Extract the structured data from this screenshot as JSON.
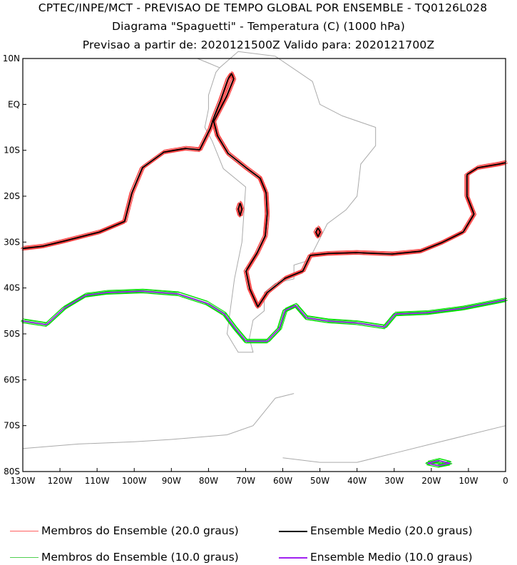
{
  "header": {
    "title1": "CPTEC/INPE/MCT - PREVISAO DE TEMPO GLOBAL POR ENSEMBLE - TQ0126L028",
    "title2": "Diagrama \"Spaguetti\" - Temperatura (C) (1000 hPa)",
    "title3": "Previsao a partir de: 2020121500Z  Valido para: 2020121700Z"
  },
  "chart_data": {
    "type": "line",
    "projection": "lat-lon",
    "xlim": [
      -130,
      0
    ],
    "ylim": [
      -80,
      10
    ],
    "x_ticks": [
      {
        "v": -130,
        "label": "130W"
      },
      {
        "v": -120,
        "label": "120W"
      },
      {
        "v": -110,
        "label": "110W"
      },
      {
        "v": -100,
        "label": "100W"
      },
      {
        "v": -90,
        "label": "90W"
      },
      {
        "v": -80,
        "label": "80W"
      },
      {
        "v": -70,
        "label": "70W"
      },
      {
        "v": -60,
        "label": "60W"
      },
      {
        "v": -50,
        "label": "50W"
      },
      {
        "v": -40,
        "label": "40W"
      },
      {
        "v": -30,
        "label": "30W"
      },
      {
        "v": -20,
        "label": "20W"
      },
      {
        "v": -10,
        "label": "10W"
      },
      {
        "v": 0,
        "label": "0"
      }
    ],
    "y_ticks": [
      {
        "v": 10,
        "label": "10N"
      },
      {
        "v": 0,
        "label": "EQ"
      },
      {
        "v": -10,
        "label": "10S"
      },
      {
        "v": -20,
        "label": "20S"
      },
      {
        "v": -30,
        "label": "30S"
      },
      {
        "v": -40,
        "label": "40S"
      },
      {
        "v": -50,
        "label": "50S"
      },
      {
        "v": -60,
        "label": "60S"
      },
      {
        "v": -70,
        "label": "70S"
      },
      {
        "v": -80,
        "label": "80S"
      }
    ],
    "series": [
      {
        "name": "Ensemble Medio (20.0 graus)",
        "color": "#000000",
        "member_color": "#ff4040",
        "lines": [
          [
            [
              -130,
              -31.4
            ],
            [
              -124.6,
              -30.9
            ],
            [
              -118.9,
              -29.8
            ],
            [
              -109.3,
              -27.8
            ],
            [
              -102.6,
              -25.5
            ],
            [
              -100.6,
              -19.2
            ],
            [
              -97.8,
              -13.8
            ],
            [
              -92,
              -10.4
            ],
            [
              -86.2,
              -9.6
            ],
            [
              -82.4,
              -9.9
            ],
            [
              -79.5,
              -5.2
            ],
            [
              -78.6,
              -2.9
            ],
            [
              -76.7,
              1
            ],
            [
              -74.7,
              5.6
            ],
            [
              -73.8,
              6.7
            ],
            [
              -73.2,
              5.6
            ],
            [
              -75.1,
              1.8
            ],
            [
              -78.6,
              -3.7
            ],
            [
              -77.6,
              -6.8
            ],
            [
              -74.7,
              -10.7
            ],
            [
              -69.9,
              -13.8
            ],
            [
              -66.1,
              -16.1
            ],
            [
              -64.5,
              -19.2
            ],
            [
              -64.2,
              -23.9
            ],
            [
              -64.7,
              -28.6
            ],
            [
              -67,
              -32.5
            ],
            [
              -69.9,
              -36.3
            ],
            [
              -68.9,
              -40.2
            ],
            [
              -66.7,
              -44.1
            ],
            [
              -64.2,
              -41
            ],
            [
              -59.4,
              -37.9
            ],
            [
              -54.6,
              -36.3
            ],
            [
              -52.6,
              -32.9
            ],
            [
              -47.9,
              -32.5
            ],
            [
              -40.2,
              -32.3
            ],
            [
              -30.6,
              -32.6
            ],
            [
              -22.9,
              -32
            ],
            [
              -17.1,
              -30.1
            ],
            [
              -11.4,
              -27.8
            ],
            [
              -8.5,
              -23.9
            ],
            [
              -10.4,
              -20
            ],
            [
              -10.4,
              -15.3
            ],
            [
              -7.5,
              -13.8
            ],
            [
              -1.7,
              -13
            ],
            [
              0,
              -12.7
            ]
          ],
          [
            [
              -71.5,
              -21.5
            ],
            [
              -71,
              -22.8
            ],
            [
              -71.5,
              -24.2
            ],
            [
              -72,
              -22.8
            ],
            [
              -71.5,
              -21.5
            ]
          ],
          [
            [
              -50.5,
              -26.9
            ],
            [
              -49.9,
              -27.8
            ],
            [
              -50.5,
              -28.8
            ],
            [
              -51.1,
              -27.8
            ],
            [
              -50.5,
              -26.9
            ]
          ]
        ]
      },
      {
        "name": "Ensemble Medio (10.0 graus)",
        "color": "#a020f0",
        "member_color": "#00dd00",
        "lines": [
          [
            [
              -130,
              -47.2
            ],
            [
              -123.7,
              -48
            ],
            [
              -118.9,
              -44.4
            ],
            [
              -113.1,
              -41.6
            ],
            [
              -107.4,
              -41
            ],
            [
              -97.8,
              -40.7
            ],
            [
              -88.2,
              -41.3
            ],
            [
              -80.5,
              -43.3
            ],
            [
              -75.7,
              -45.7
            ],
            [
              -72.8,
              -48.8
            ],
            [
              -69.9,
              -51.6
            ],
            [
              -64.2,
              -51.6
            ],
            [
              -60.9,
              -48.8
            ],
            [
              -59.4,
              -44.9
            ],
            [
              -56.5,
              -43.8
            ],
            [
              -53.6,
              -46.5
            ],
            [
              -47.9,
              -47.2
            ],
            [
              -40.2,
              -47.6
            ],
            [
              -32.6,
              -48.5
            ],
            [
              -29.7,
              -45.7
            ],
            [
              -21,
              -45.4
            ],
            [
              -11.4,
              -44.4
            ],
            [
              0,
              -42.6
            ]
          ],
          [
            [
              -21,
              -78.2
            ],
            [
              -18,
              -77.6
            ],
            [
              -15,
              -78.2
            ],
            [
              -18,
              -78.7
            ],
            [
              -21,
              -78.2
            ]
          ]
        ]
      }
    ]
  },
  "legend": [
    {
      "label": "Membros do Ensemble (20.0 graus)",
      "color": "#ff6060"
    },
    {
      "label": "Ensemble Medio (20.0 graus)",
      "color": "#000000"
    },
    {
      "label": "Membros do Ensemble (10.0 graus)",
      "color": "#50d050"
    },
    {
      "label": "Ensemble Medio (10.0 graus)",
      "color": "#a020f0"
    }
  ]
}
